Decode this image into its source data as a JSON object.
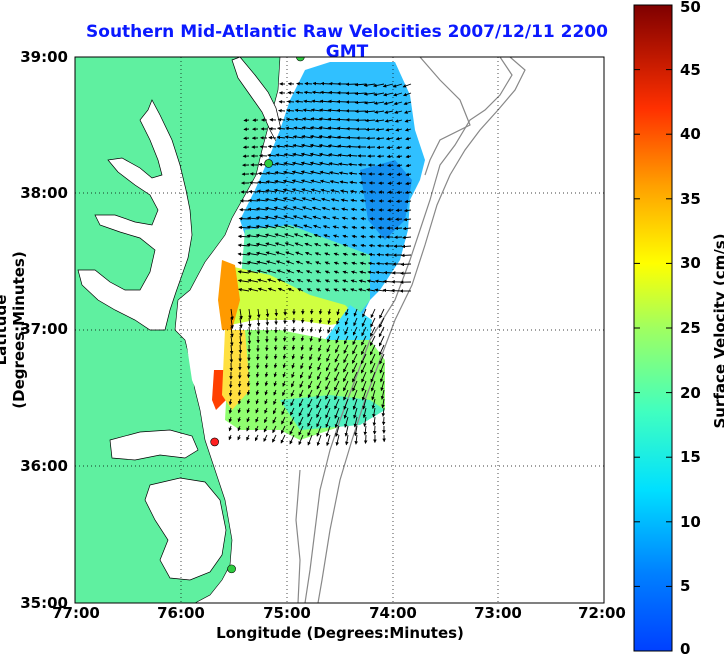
{
  "map": {
    "title": "Southern Mid-Atlantic Raw Velocities 2007/12/11 2200 GMT",
    "xlabel": "Longitude (Degrees:Minutes)",
    "ylabel": "Latitude (Degrees:Minutes)",
    "x_ticks": [
      "77:00",
      "76:00",
      "75:00",
      "74:00",
      "73:00",
      "72:00"
    ],
    "y_ticks": [
      "39:00",
      "38:00",
      "37:00",
      "36:00",
      "35:00"
    ],
    "lon_range": [
      -77,
      -72
    ],
    "lat_range": [
      35,
      39
    ],
    "grid": "dotted",
    "land_color": "#5ff0a0",
    "title_color": "#0a19ff"
  },
  "colorbar": {
    "label": "Surface Velocity (cm/s)",
    "ticks": [
      "0",
      "5",
      "10",
      "15",
      "20",
      "25",
      "30",
      "35",
      "40",
      "45",
      "50"
    ],
    "range": [
      0,
      50
    ],
    "colormap": "jet"
  },
  "stations": [
    {
      "lon": -74.87,
      "lat": 39.0,
      "color": "#2ecc40"
    },
    {
      "lon": -75.17,
      "lat": 38.22,
      "color": "#2ecc40"
    },
    {
      "lon": -75.68,
      "lat": 36.18,
      "color": "#ff2020"
    },
    {
      "lon": -75.52,
      "lat": 35.25,
      "color": "#2ecc40"
    }
  ]
}
